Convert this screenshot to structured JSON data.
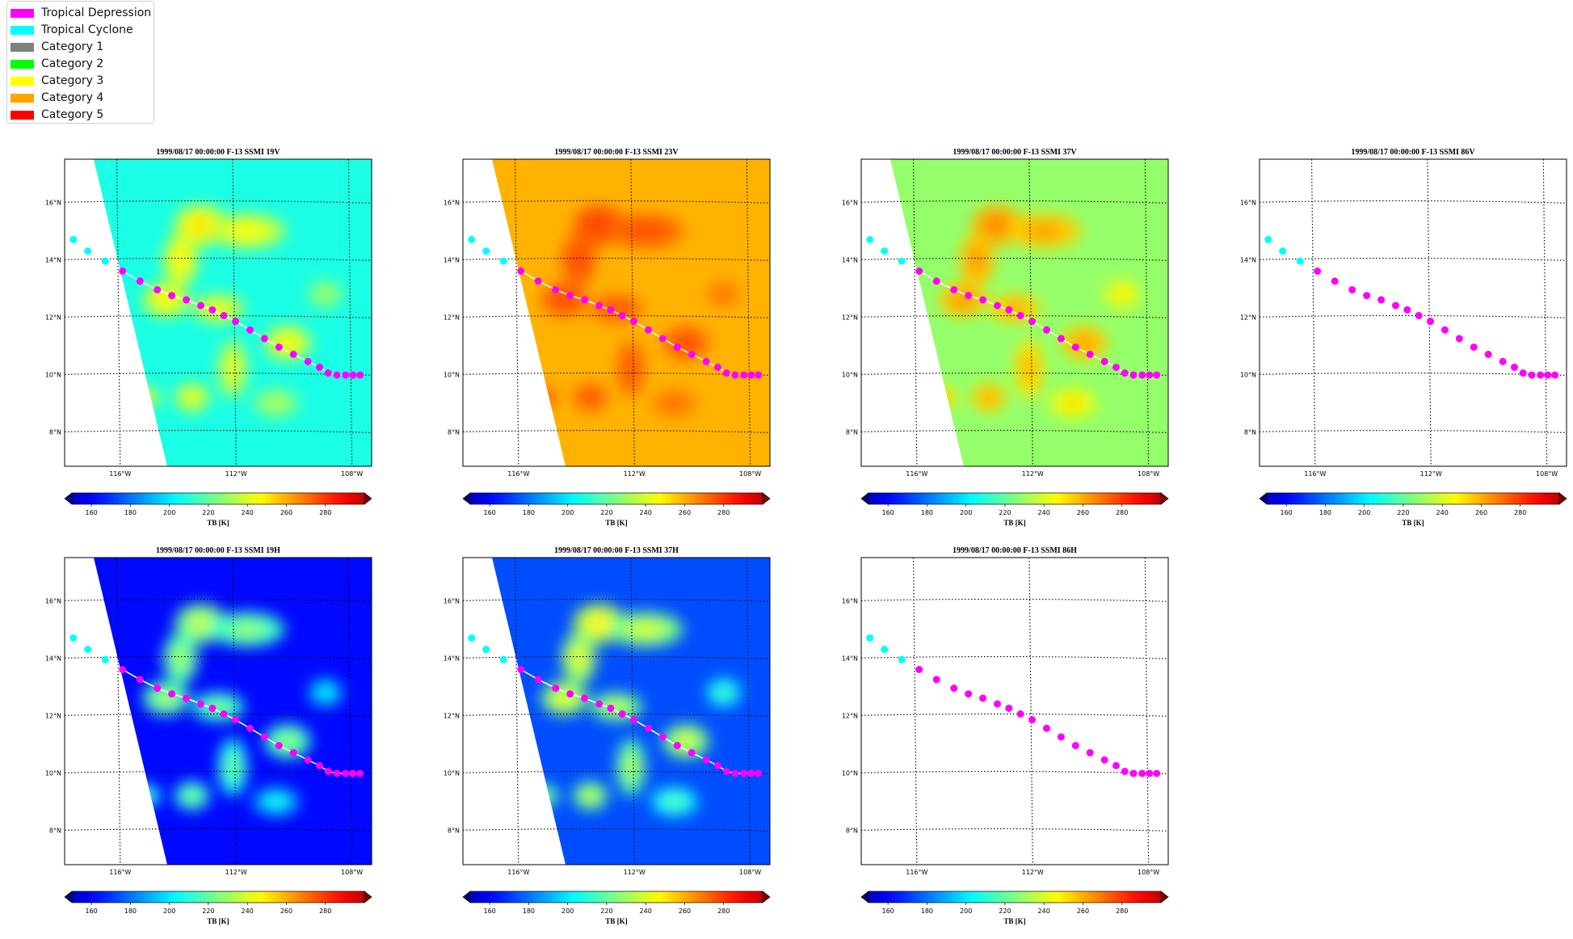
{
  "legend": {
    "items": [
      {
        "label": "Tropical Depression",
        "color": "#ff00ff"
      },
      {
        "label": "Tropical Cyclone",
        "color": "#00ffff"
      },
      {
        "label": "Category 1",
        "color": "#808080"
      },
      {
        "label": "Category 2",
        "color": "#00ff00"
      },
      {
        "label": "Category 3",
        "color": "#ffff00"
      },
      {
        "label": "Category 4",
        "color": "#ffa500"
      },
      {
        "label": "Category 5",
        "color": "#ff0000"
      }
    ]
  },
  "chart_data": [
    {
      "type": "heatmap",
      "title": "1999/08/17 00:00:00  F-13 SSMI 19V",
      "ylim": [
        6.8,
        17.5
      ],
      "xlim": [
        -117.8,
        -107.2
      ],
      "x_ticks": [
        "116°W",
        "112°W",
        "108°W"
      ],
      "y_ticks": [
        "16°N",
        "14°N",
        "12°N",
        "10°N",
        "8°N"
      ],
      "colorbar": {
        "label": "TB [K]",
        "ticks": [
          "160",
          "180",
          "200",
          "220",
          "240",
          "260",
          "280"
        ],
        "range": [
          150,
          300
        ]
      },
      "field": {
        "background_tb": 210,
        "swath": "partial",
        "storm_tb": 240
      }
    },
    {
      "type": "heatmap",
      "title": "1999/08/17 00:00:00  F-13 SSMI 23V",
      "ylim": [
        6.8,
        17.5
      ],
      "xlim": [
        -117.8,
        -107.2
      ],
      "x_ticks": [
        "116°W",
        "112°W",
        "108°W"
      ],
      "y_ticks": [
        "16°N",
        "14°N",
        "12°N",
        "10°N",
        "8°N"
      ],
      "colorbar": {
        "label": "TB [K]",
        "ticks": [
          "160",
          "180",
          "200",
          "220",
          "240",
          "260",
          "280"
        ],
        "range": [
          150,
          300
        ]
      },
      "field": {
        "background_tb": 255,
        "swath": "partial",
        "storm_tb": 268
      }
    },
    {
      "type": "heatmap",
      "title": "1999/08/17 00:00:00  F-13 SSMI 37V",
      "ylim": [
        6.8,
        17.5
      ],
      "xlim": [
        -117.8,
        -107.2
      ],
      "x_ticks": [
        "116°W",
        "112°W",
        "108°W"
      ],
      "y_ticks": [
        "16°N",
        "14°N",
        "12°N",
        "10°N",
        "8°N"
      ],
      "colorbar": {
        "label": "TB [K]",
        "ticks": [
          "160",
          "180",
          "200",
          "220",
          "240",
          "260",
          "280"
        ],
        "range": [
          150,
          300
        ]
      },
      "field": {
        "background_tb": 228,
        "swath": "partial",
        "storm_tb": 255
      }
    },
    {
      "type": "heatmap",
      "title": "1999/08/17 00:00:00  F-13 SSMI 86V",
      "ylim": [
        6.8,
        17.5
      ],
      "xlim": [
        -117.8,
        -107.2
      ],
      "x_ticks": [
        "116°W",
        "112°W",
        "108°W"
      ],
      "y_ticks": [
        "16°N",
        "14°N",
        "12°N",
        "10°N",
        "8°N"
      ],
      "colorbar": {
        "label": "TB [K]",
        "ticks": [
          "160",
          "180",
          "200",
          "220",
          "240",
          "260",
          "280"
        ],
        "range": [
          150,
          300
        ]
      },
      "field": {
        "background_tb": null,
        "swath": "none",
        "storm_tb": null
      }
    },
    {
      "type": "heatmap",
      "title": "1999/08/17 00:00:00  F-13 SSMI 19H",
      "ylim": [
        6.8,
        17.5
      ],
      "xlim": [
        -117.8,
        -107.2
      ],
      "x_ticks": [
        "116°W",
        "112°W",
        "108°W"
      ],
      "y_ticks": [
        "16°N",
        "14°N",
        "12°N",
        "10°N",
        "8°N"
      ],
      "colorbar": {
        "label": "TB [K]",
        "ticks": [
          "160",
          "180",
          "200",
          "220",
          "240",
          "260",
          "280"
        ],
        "range": [
          150,
          300
        ]
      },
      "field": {
        "background_tb": 170,
        "swath": "partial",
        "storm_tb": 222
      }
    },
    {
      "type": "heatmap",
      "title": "1999/08/17 00:00:00  F-13 SSMI 37H",
      "ylim": [
        6.8,
        17.5
      ],
      "xlim": [
        -117.8,
        -107.2
      ],
      "x_ticks": [
        "116°W",
        "112°W",
        "108°W"
      ],
      "y_ticks": [
        "16°N",
        "14°N",
        "12°N",
        "10°N",
        "8°N"
      ],
      "colorbar": {
        "label": "TB [K]",
        "ticks": [
          "160",
          "180",
          "200",
          "220",
          "240",
          "260",
          "280"
        ],
        "range": [
          150,
          300
        ]
      },
      "field": {
        "background_tb": 180,
        "swath": "partial",
        "storm_tb": 232
      }
    },
    {
      "type": "heatmap",
      "title": "1999/08/17 00:00:00  F-13 SSMI 86H",
      "ylim": [
        6.8,
        17.5
      ],
      "xlim": [
        -117.8,
        -107.2
      ],
      "x_ticks": [
        "116°W",
        "112°W",
        "108°W"
      ],
      "y_ticks": [
        "16°N",
        "14°N",
        "12°N",
        "10°N",
        "8°N"
      ],
      "colorbar": {
        "label": "TB [K]",
        "ticks": [
          "160",
          "180",
          "200",
          "220",
          "240",
          "260",
          "280"
        ],
        "range": [
          150,
          300
        ]
      },
      "field": {
        "background_tb": null,
        "swath": "none",
        "storm_tb": null
      }
    }
  ],
  "track": {
    "points": [
      {
        "lon": -117.5,
        "lat": 14.7,
        "cat": "Tropical Cyclone"
      },
      {
        "lon": -117.0,
        "lat": 14.3,
        "cat": "Tropical Cyclone"
      },
      {
        "lon": -116.4,
        "lat": 13.95,
        "cat": "Tropical Cyclone"
      },
      {
        "lon": -115.8,
        "lat": 13.6,
        "cat": "Tropical Depression"
      },
      {
        "lon": -115.2,
        "lat": 13.25,
        "cat": "Tropical Depression"
      },
      {
        "lon": -114.6,
        "lat": 12.95,
        "cat": "Tropical Depression"
      },
      {
        "lon": -114.1,
        "lat": 12.75,
        "cat": "Tropical Depression"
      },
      {
        "lon": -113.6,
        "lat": 12.6,
        "cat": "Tropical Depression"
      },
      {
        "lon": -113.1,
        "lat": 12.4,
        "cat": "Tropical Depression"
      },
      {
        "lon": -112.7,
        "lat": 12.25,
        "cat": "Tropical Depression"
      },
      {
        "lon": -112.3,
        "lat": 12.05,
        "cat": "Tropical Depression"
      },
      {
        "lon": -111.9,
        "lat": 11.85,
        "cat": "Tropical Depression"
      },
      {
        "lon": -111.4,
        "lat": 11.55,
        "cat": "Tropical Depression"
      },
      {
        "lon": -110.9,
        "lat": 11.25,
        "cat": "Tropical Depression"
      },
      {
        "lon": -110.4,
        "lat": 10.95,
        "cat": "Tropical Depression"
      },
      {
        "lon": -109.9,
        "lat": 10.7,
        "cat": "Tropical Depression"
      },
      {
        "lon": -109.4,
        "lat": 10.45,
        "cat": "Tropical Depression"
      },
      {
        "lon": -109.0,
        "lat": 10.25,
        "cat": "Tropical Depression"
      },
      {
        "lon": -108.7,
        "lat": 10.05,
        "cat": "Tropical Depression"
      },
      {
        "lon": -108.4,
        "lat": 9.98,
        "cat": "Tropical Depression"
      },
      {
        "lon": -108.1,
        "lat": 9.98,
        "cat": "Tropical Depression"
      },
      {
        "lon": -107.85,
        "lat": 9.98,
        "cat": "Tropical Depression"
      },
      {
        "lon": -107.6,
        "lat": 9.98,
        "cat": "Tropical Depression"
      }
    ]
  }
}
